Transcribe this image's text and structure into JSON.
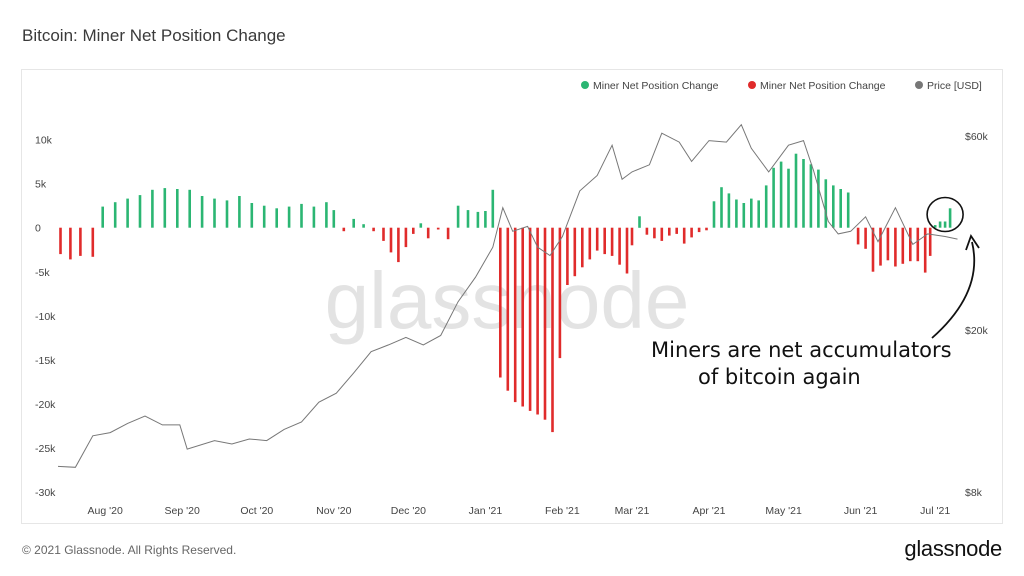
{
  "title": "Bitcoin: Miner Net Position Change",
  "footer": {
    "copyright": "© 2021 Glassnode. All Rights Reserved.",
    "logo": "glassnode"
  },
  "watermark": "glassnode",
  "colors": {
    "positive": "#2bb673",
    "negative": "#e02b2b",
    "price": "#777777"
  },
  "chart_data": {
    "type": "bar",
    "title": "Bitcoin: Miner Net Position Change",
    "legend": [
      {
        "label": "Miner Net Position Change",
        "color": "#2bb673"
      },
      {
        "label": "Miner Net Position Change",
        "color": "#e02b2b"
      },
      {
        "label": "Price [USD]",
        "color": "#777777"
      }
    ],
    "legend_position": "top-right",
    "grid": false,
    "x_range": [
      "2020-07-13",
      "2021-07-11"
    ],
    "x_tick_labels": [
      "Aug '20",
      "Sep '20",
      "Oct '20",
      "Nov '20",
      "Dec '20",
      "Jan '21",
      "Feb '21",
      "Mar '21",
      "Apr '21",
      "May '21",
      "Jun '21",
      "Jul '21"
    ],
    "x_tick_dates": [
      "2020-08-01",
      "2020-09-01",
      "2020-10-01",
      "2020-11-01",
      "2020-12-01",
      "2021-01-01",
      "2021-02-01",
      "2021-03-01",
      "2021-04-01",
      "2021-05-01",
      "2021-06-01",
      "2021-07-01"
    ],
    "left_axis": {
      "ylim": [
        -30000,
        12000
      ],
      "tick_labels": [
        "10k",
        "5k",
        "0",
        "-5k",
        "-10k",
        "-15k",
        "-20k",
        "-25k",
        "-30k"
      ],
      "tick_values": [
        10000,
        5000,
        0,
        -5000,
        -10000,
        -15000,
        -20000,
        -25000,
        -30000
      ]
    },
    "right_axis": {
      "scale": "log",
      "ylim": [
        8000,
        65000
      ],
      "tick_labels": [
        "$60k",
        "$20k",
        "$8k"
      ],
      "tick_values": [
        60000,
        20000,
        8000
      ]
    },
    "series": [
      {
        "name": "Miner Net Position Change",
        "unit": "BTC",
        "points": [
          [
            "2020-07-14",
            -3000
          ],
          [
            "2020-07-18",
            -3600
          ],
          [
            "2020-07-22",
            -3200
          ],
          [
            "2020-07-27",
            -3300
          ],
          [
            "2020-07-31",
            2400
          ],
          [
            "2020-08-05",
            2900
          ],
          [
            "2020-08-10",
            3300
          ],
          [
            "2020-08-15",
            3700
          ],
          [
            "2020-08-20",
            4300
          ],
          [
            "2020-08-25",
            4500
          ],
          [
            "2020-08-30",
            4400
          ],
          [
            "2020-09-04",
            4300
          ],
          [
            "2020-09-09",
            3600
          ],
          [
            "2020-09-14",
            3300
          ],
          [
            "2020-09-19",
            3100
          ],
          [
            "2020-09-24",
            3600
          ],
          [
            "2020-09-29",
            2800
          ],
          [
            "2020-10-04",
            2500
          ],
          [
            "2020-10-09",
            2200
          ],
          [
            "2020-10-14",
            2400
          ],
          [
            "2020-10-19",
            2700
          ],
          [
            "2020-10-24",
            2400
          ],
          [
            "2020-10-29",
            2900
          ],
          [
            "2020-11-01",
            2000
          ],
          [
            "2020-11-05",
            -400
          ],
          [
            "2020-11-09",
            1000
          ],
          [
            "2020-11-13",
            400
          ],
          [
            "2020-11-17",
            -400
          ],
          [
            "2020-11-21",
            -1500
          ],
          [
            "2020-11-24",
            -2800
          ],
          [
            "2020-11-27",
            -3900
          ],
          [
            "2020-11-30",
            -2200
          ],
          [
            "2020-12-03",
            -700
          ],
          [
            "2020-12-06",
            500
          ],
          [
            "2020-12-09",
            -1200
          ],
          [
            "2020-12-13",
            -200
          ],
          [
            "2020-12-17",
            -1300
          ],
          [
            "2020-12-21",
            2500
          ],
          [
            "2020-12-25",
            2000
          ],
          [
            "2020-12-29",
            1800
          ],
          [
            "2021-01-01",
            1900
          ],
          [
            "2021-01-04",
            4300
          ],
          [
            "2021-01-07",
            -17000
          ],
          [
            "2021-01-10",
            -18500
          ],
          [
            "2021-01-13",
            -19800
          ],
          [
            "2021-01-16",
            -20300
          ],
          [
            "2021-01-19",
            -20800
          ],
          [
            "2021-01-22",
            -21200
          ],
          [
            "2021-01-25",
            -21800
          ],
          [
            "2021-01-28",
            -23200
          ],
          [
            "2021-01-31",
            -14800
          ],
          [
            "2021-02-03",
            -6500
          ],
          [
            "2021-02-06",
            -5500
          ],
          [
            "2021-02-09",
            -4500
          ],
          [
            "2021-02-12",
            -3600
          ],
          [
            "2021-02-15",
            -2600
          ],
          [
            "2021-02-18",
            -3000
          ],
          [
            "2021-02-21",
            -3200
          ],
          [
            "2021-02-24",
            -4200
          ],
          [
            "2021-02-27",
            -5200
          ],
          [
            "2021-03-01",
            -2000
          ],
          [
            "2021-03-04",
            1300
          ],
          [
            "2021-03-07",
            -800
          ],
          [
            "2021-03-10",
            -1200
          ],
          [
            "2021-03-13",
            -1500
          ],
          [
            "2021-03-16",
            -900
          ],
          [
            "2021-03-19",
            -700
          ],
          [
            "2021-03-22",
            -1800
          ],
          [
            "2021-03-25",
            -1100
          ],
          [
            "2021-03-28",
            -500
          ],
          [
            "2021-03-31",
            -300
          ],
          [
            "2021-04-03",
            3000
          ],
          [
            "2021-04-06",
            4600
          ],
          [
            "2021-04-09",
            3900
          ],
          [
            "2021-04-12",
            3200
          ],
          [
            "2021-04-15",
            2800
          ],
          [
            "2021-04-18",
            3300
          ],
          [
            "2021-04-21",
            3100
          ],
          [
            "2021-04-24",
            4800
          ],
          [
            "2021-04-27",
            6800
          ],
          [
            "2021-04-30",
            7500
          ],
          [
            "2021-05-03",
            6700
          ],
          [
            "2021-05-06",
            8400
          ],
          [
            "2021-05-09",
            7800
          ],
          [
            "2021-05-12",
            7200
          ],
          [
            "2021-05-15",
            6600
          ],
          [
            "2021-05-18",
            5500
          ],
          [
            "2021-05-21",
            4800
          ],
          [
            "2021-05-24",
            4400
          ],
          [
            "2021-05-27",
            4000
          ],
          [
            "2021-05-31",
            -1900
          ],
          [
            "2021-06-03",
            -2400
          ],
          [
            "2021-06-06",
            -5000
          ],
          [
            "2021-06-09",
            -4300
          ],
          [
            "2021-06-12",
            -3700
          ],
          [
            "2021-06-15",
            -4400
          ],
          [
            "2021-06-18",
            -4100
          ],
          [
            "2021-06-21",
            -3800
          ],
          [
            "2021-06-24",
            -3800
          ],
          [
            "2021-06-27",
            -5100
          ],
          [
            "2021-06-29",
            -3200
          ],
          [
            "2021-07-01",
            300
          ],
          [
            "2021-07-03",
            700
          ],
          [
            "2021-07-05",
            700
          ],
          [
            "2021-07-07",
            2200
          ]
        ]
      },
      {
        "name": "Price [USD]",
        "axis": "right",
        "points": [
          [
            "2020-07-13",
            9250
          ],
          [
            "2020-07-20",
            9200
          ],
          [
            "2020-07-27",
            11000
          ],
          [
            "2020-08-03",
            11200
          ],
          [
            "2020-08-10",
            11800
          ],
          [
            "2020-08-17",
            12300
          ],
          [
            "2020-08-24",
            11700
          ],
          [
            "2020-08-31",
            11700
          ],
          [
            "2020-09-03",
            10200
          ],
          [
            "2020-09-14",
            10700
          ],
          [
            "2020-09-21",
            10500
          ],
          [
            "2020-09-28",
            10800
          ],
          [
            "2020-10-05",
            10700
          ],
          [
            "2020-10-12",
            11400
          ],
          [
            "2020-10-19",
            11900
          ],
          [
            "2020-10-26",
            13300
          ],
          [
            "2020-11-02",
            14000
          ],
          [
            "2020-11-09",
            15700
          ],
          [
            "2020-11-16",
            17700
          ],
          [
            "2020-11-23",
            18400
          ],
          [
            "2020-11-30",
            19200
          ],
          [
            "2020-12-07",
            18400
          ],
          [
            "2020-12-14",
            19400
          ],
          [
            "2020-12-21",
            23500
          ],
          [
            "2020-12-28",
            27000
          ],
          [
            "2021-01-04",
            32000
          ],
          [
            "2021-01-08",
            40000
          ],
          [
            "2021-01-12",
            35000
          ],
          [
            "2021-01-18",
            36000
          ],
          [
            "2021-01-22",
            32000
          ],
          [
            "2021-01-27",
            30500
          ],
          [
            "2021-02-01",
            34000
          ],
          [
            "2021-02-08",
            44000
          ],
          [
            "2021-02-15",
            48000
          ],
          [
            "2021-02-21",
            57000
          ],
          [
            "2021-02-25",
            47000
          ],
          [
            "2021-03-01",
            49000
          ],
          [
            "2021-03-08",
            51000
          ],
          [
            "2021-03-13",
            61000
          ],
          [
            "2021-03-20",
            58000
          ],
          [
            "2021-03-25",
            52000
          ],
          [
            "2021-04-01",
            58500
          ],
          [
            "2021-04-08",
            58000
          ],
          [
            "2021-04-14",
            64000
          ],
          [
            "2021-04-18",
            56000
          ],
          [
            "2021-04-25",
            49000
          ],
          [
            "2021-05-03",
            57000
          ],
          [
            "2021-05-09",
            58500
          ],
          [
            "2021-05-13",
            49500
          ],
          [
            "2021-05-19",
            37000
          ],
          [
            "2021-05-23",
            34500
          ],
          [
            "2021-05-28",
            35000
          ],
          [
            "2021-06-03",
            38000
          ],
          [
            "2021-06-08",
            33000
          ],
          [
            "2021-06-15",
            40000
          ],
          [
            "2021-06-22",
            32500
          ],
          [
            "2021-06-28",
            34500
          ],
          [
            "2021-07-05",
            34000
          ],
          [
            "2021-07-10",
            33500
          ]
        ]
      }
    ],
    "annotation": {
      "text_lines": [
        "Miners are net accumulators",
        "of bitcoin again"
      ],
      "target_date": "2021-07-05",
      "target_value": 1500
    }
  }
}
